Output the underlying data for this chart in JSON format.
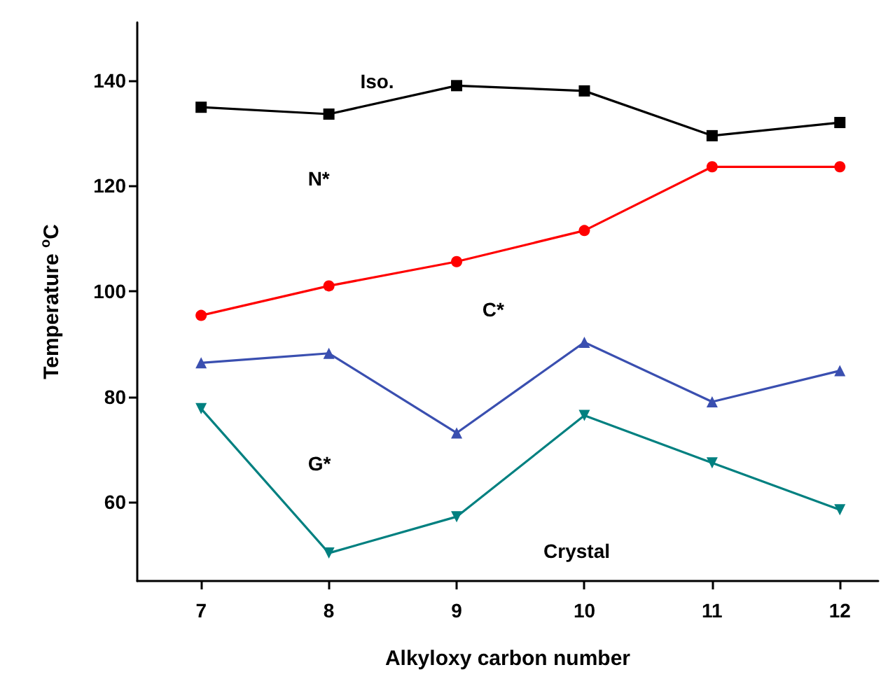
{
  "chart_data": {
    "type": "line",
    "xlabel": "Alkyloxy carbon number",
    "ylabel": "Temperature $^{o}$C",
    "x": [
      7,
      8,
      9,
      10,
      11,
      12
    ],
    "series": [
      {
        "color": "#000000",
        "marker": "square",
        "values": [
          134.9,
          133.6,
          139,
          138,
          129.5,
          132
        ]
      },
      {
        "color": "#ff0000",
        "marker": "circle",
        "values": [
          95.4,
          101,
          105.6,
          111.5,
          123.6,
          123.6
        ]
      },
      {
        "color": "#3a4fb0",
        "marker": "triangle",
        "values": [
          86.4,
          88.2,
          73.1,
          90.3,
          79,
          84.9
        ]
      },
      {
        "color": "#008080",
        "marker": "triangle-down",
        "values": [
          77.7,
          50.3,
          57.2,
          76.4,
          67.4,
          58.5
        ]
      }
    ],
    "xlim": [
      6.5,
      12.3
    ],
    "xticks": [
      7,
      8,
      9,
      10,
      11,
      12
    ],
    "ylim": [
      45,
      151
    ],
    "yticks": [
      60,
      80,
      100,
      120,
      140
    ],
    "annotations": [
      "Iso.",
      "N*",
      "C*",
      "G*",
      "Crystal"
    ],
    "grid": false,
    "line_style": "solid"
  }
}
